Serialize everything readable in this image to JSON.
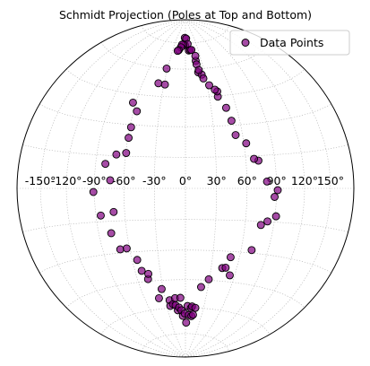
{
  "chart_data": {
    "type": "scatter",
    "title": "Schmidt Projection (Poles at Top and Bottom)",
    "projection": "hammer",
    "grid": true,
    "legend_position": "top-right",
    "x_tick_labels": [
      "-150°",
      "-120°",
      "-90°",
      "-60°",
      "-30°",
      "0°",
      "30°",
      "60°",
      "90°",
      "120°",
      "150°"
    ],
    "x_ticks": [
      -150,
      -120,
      -90,
      -60,
      -30,
      0,
      30,
      60,
      90,
      120,
      150
    ],
    "y_grid": [
      -75,
      -60,
      -45,
      -30,
      -15,
      0,
      15,
      30,
      45,
      60,
      75
    ],
    "series": [
      {
        "name": "Data Points",
        "color": "#800080",
        "edge_color": "#000000",
        "points": [
          [
            -2.3,
            78.3
          ],
          [
            -0.9,
            73.8
          ],
          [
            2.4,
            77.8
          ],
          [
            6.3,
            74.5
          ],
          [
            -5.5,
            74.2
          ],
          [
            -9.7,
            74.1
          ],
          [
            7.9,
            70.6
          ],
          [
            -11.8,
            72.5
          ],
          [
            -15.9,
            70.8
          ],
          [
            11.1,
            70.9
          ],
          [
            14.3,
            70.9
          ],
          [
            -18.2,
            70.3
          ],
          [
            19.5,
            64.5
          ],
          [
            20.6,
            67.3
          ],
          [
            19.8,
            62.5
          ],
          [
            20.3,
            58.1
          ],
          [
            -31.5,
            59.9
          ],
          [
            -38.1,
            51.7
          ],
          [
            -28.6,
            51.3
          ],
          [
            -63.6,
            40.7
          ],
          [
            -56.1,
            36.7
          ],
          [
            -58.6,
            28.8
          ],
          [
            -59.2,
            23.7
          ],
          [
            -59.6,
            16.5
          ],
          [
            -69.5,
            15.6
          ],
          [
            -79.8,
            11.1
          ],
          [
            -73.8,
            3.7
          ],
          [
            -91.0,
            -1.6
          ],
          [
            -84.9,
            -12.2
          ],
          [
            -71.2,
            -10.8
          ],
          [
            -76.6,
            -20.5
          ],
          [
            -70.4,
            -28.3
          ],
          [
            -63.1,
            -28.1
          ],
          [
            -54.2,
            -34.0
          ],
          [
            -52.0,
            -39.5
          ],
          [
            -46.8,
            -43.9
          ],
          [
            -44.9,
            -41.3
          ],
          [
            -39.1,
            -54.2
          ],
          [
            -32.2,
            -49.5
          ],
          [
            -24.0,
            -55.7
          ],
          [
            -24.6,
            -58.8
          ],
          [
            -19.8,
            -57.9
          ],
          [
            -15.9,
            -58.6
          ],
          [
            -15.5,
            -54.7
          ],
          [
            -13.2,
            -61.4
          ],
          [
            -10.7,
            -59.9
          ],
          [
            -7.5,
            -54.6
          ],
          [
            -7.1,
            -61.4
          ],
          [
            -4.9,
            -64.6
          ],
          [
            -1.3,
            -63.3
          ],
          [
            1.5,
            -68.5
          ],
          [
            3.4,
            -59.1
          ],
          [
            6.1,
            -64.1
          ],
          [
            9.1,
            -60.1
          ],
          [
            10.9,
            -59.3
          ],
          [
            11.3,
            -64.7
          ],
          [
            16.5,
            -60.0
          ],
          [
            14.1,
            -63.9
          ],
          [
            20.8,
            -48.7
          ],
          [
            29.2,
            -44.5
          ],
          [
            43.0,
            -38.4
          ],
          [
            46.9,
            -38.1
          ],
          [
            54.1,
            -41.7
          ],
          [
            50.1,
            -32.8
          ],
          [
            71.7,
            -28.6
          ],
          [
            76.5,
            -16.7
          ],
          [
            82.9,
            -14.9
          ],
          [
            91.2,
            -12.4
          ],
          [
            91.2,
            -0.8
          ],
          [
            88.1,
            -3.8
          ],
          [
            80.2,
            3.1
          ],
          [
            72.8,
            12.7
          ],
          [
            68.5,
            13.6
          ],
          [
            62.4,
            21.0
          ],
          [
            52.6,
            25.2
          ],
          [
            50.8,
            32.2
          ],
          [
            47.8,
            38.7
          ],
          [
            40.8,
            44.6
          ],
          [
            41.7,
            47.3
          ],
          [
            39.1,
            48.3
          ],
          [
            32.8,
            50.8
          ],
          [
            25.2,
            56.7
          ],
          [
            26.6,
            54.6
          ],
          [
            21.9,
            59.3
          ]
        ]
      }
    ]
  }
}
